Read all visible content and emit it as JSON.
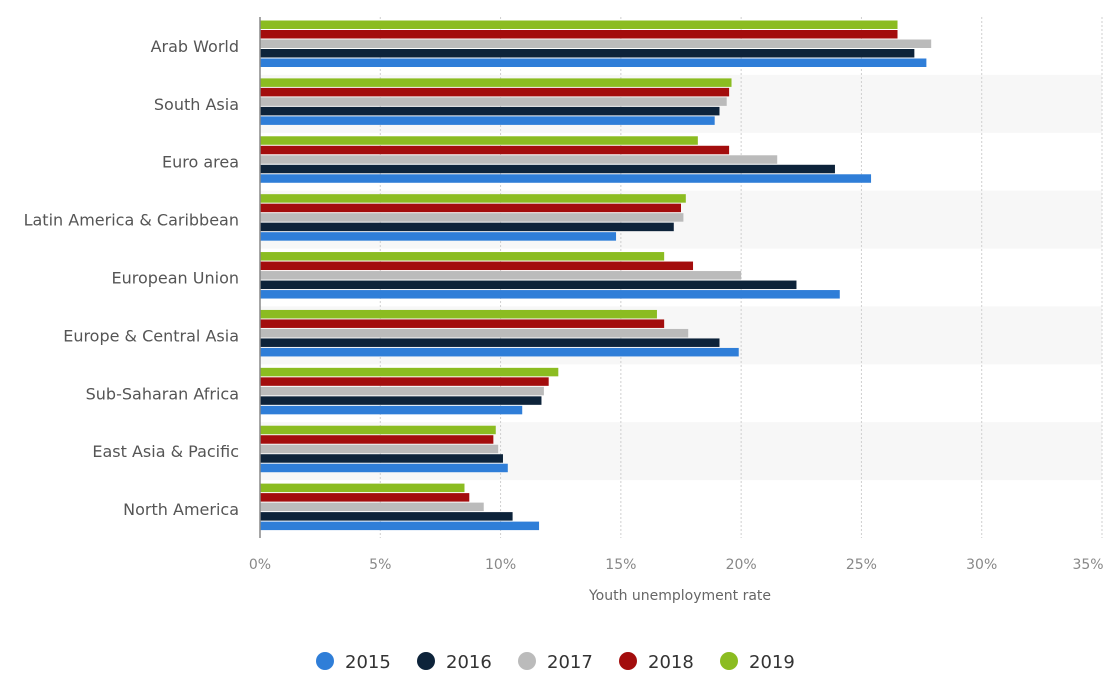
{
  "chart_data": {
    "type": "bar",
    "orientation": "horizontal",
    "categories": [
      "Arab World",
      "South Asia",
      "Euro area",
      "Latin America & Caribbean",
      "European Union",
      "Europe & Central Asia",
      "Sub-Saharan Africa",
      "East Asia & Pacific",
      "North America"
    ],
    "series": [
      {
        "name": "2015",
        "color": "#2f7ed8",
        "values": [
          27.7,
          18.9,
          25.4,
          14.8,
          24.1,
          19.9,
          10.9,
          10.3,
          11.6
        ]
      },
      {
        "name": "2016",
        "color": "#0d233a",
        "values": [
          27.2,
          19.1,
          23.9,
          17.2,
          22.3,
          19.1,
          11.7,
          10.1,
          10.5
        ]
      },
      {
        "name": "2017",
        "color": "#bbbbbb",
        "values": [
          27.9,
          19.4,
          21.5,
          17.6,
          20.0,
          17.8,
          11.8,
          9.9,
          9.3
        ]
      },
      {
        "name": "2018",
        "color": "#a30d0d",
        "values": [
          26.5,
          19.5,
          19.5,
          17.5,
          18.0,
          16.8,
          12.0,
          9.7,
          8.7
        ]
      },
      {
        "name": "2019",
        "color": "#8bbc21",
        "values": [
          26.5,
          19.6,
          18.2,
          17.7,
          16.8,
          16.5,
          12.4,
          9.8,
          8.5
        ]
      }
    ],
    "xlabel": "Youth unemployment rate",
    "ylabel": "",
    "xlim": [
      0,
      35
    ],
    "x_ticks": [
      "0%",
      "5%",
      "10%",
      "15%",
      "20%",
      "25%",
      "30%",
      "35%"
    ],
    "grid": "vertical dotted",
    "legend": "bottom-center"
  }
}
